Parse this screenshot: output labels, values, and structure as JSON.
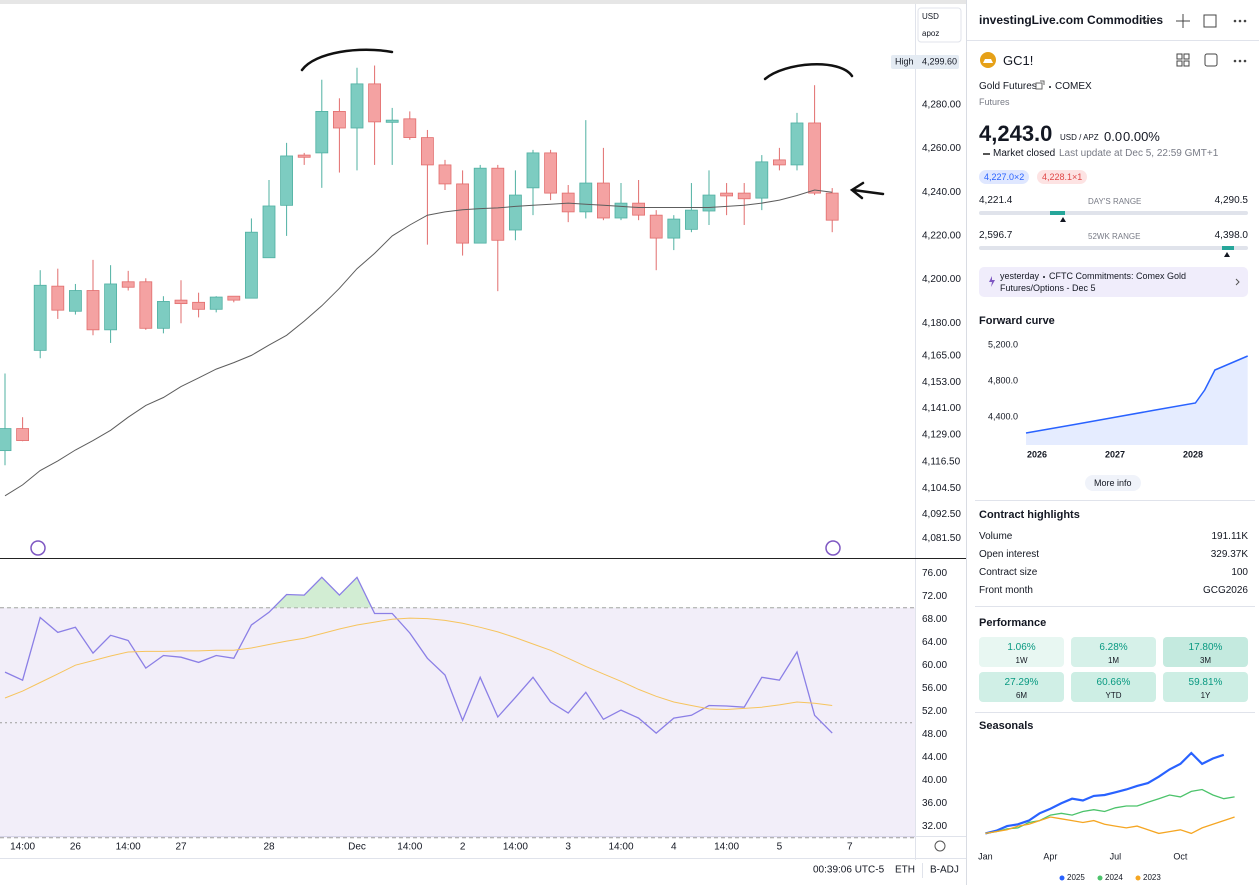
{
  "chart_controls": {
    "currency": "USD",
    "unit": "apoz"
  },
  "status_bar": {
    "time": "00:39:06 UTC-5",
    "session": "ETH",
    "adjustment": "B-ADJ"
  },
  "panel": {
    "watchlist": "investingLive.com Commodities",
    "symbol": {
      "ticker": "GC1!",
      "name": "Gold Futures",
      "exchange": "COMEX",
      "type": "Futures"
    },
    "quote": {
      "price": "4,243.0",
      "currency": "USD / APZ",
      "change": "0.0",
      "change_percent": "0.00%",
      "status": "Market closed",
      "last_update": "Last update at Dec 5, 22:59 GMT+1",
      "bid": "4,227.0×2",
      "ask": "4,228.1×1"
    },
    "day_range": {
      "low": "4,221.4",
      "label": "DAY'S RANGE",
      "high": "4,290.5"
    },
    "week52_range": {
      "low": "2,596.7",
      "label": "52WK RANGE",
      "high": "4,398.0"
    },
    "news": {
      "time": "yesterday",
      "text": "CFTC Commitments: Comex Gold Futures/Options - Dec 5"
    },
    "more_info": "More info",
    "contract_highlights": {
      "title": "Contract highlights",
      "rows": [
        [
          "Volume",
          "191.11K"
        ],
        [
          "Open interest",
          "329.37K"
        ],
        [
          "Contract size",
          "100"
        ],
        [
          "Front month",
          "GCG2026"
        ]
      ]
    },
    "performance": {
      "title": "Performance",
      "cells": [
        {
          "value": "1.06%",
          "period": "1W"
        },
        {
          "value": "6.28%",
          "period": "1M"
        },
        {
          "value": "17.80%",
          "period": "3M"
        },
        {
          "value": "27.29%",
          "period": "6M"
        },
        {
          "value": "60.66%",
          "period": "YTD"
        },
        {
          "value": "59.81%",
          "period": "1Y"
        }
      ]
    }
  },
  "chart_data": [
    {
      "type": "candlestick",
      "categories": [
        null,
        "14:00",
        null,
        null,
        "26",
        null,
        null,
        "14:00",
        null,
        null,
        "27",
        null,
        null,
        null,
        null,
        "28",
        null,
        null,
        null,
        null,
        "Dec",
        null,
        null,
        "14:00",
        null,
        null,
        "2",
        null,
        null,
        "14:00",
        null,
        null,
        "3",
        null,
        null,
        "14:00",
        null,
        null,
        "4",
        null,
        null,
        "14:00",
        null,
        null,
        "5",
        null,
        null,
        null,
        "7"
      ],
      "open": [
        4121.7,
        4131.8,
        4167.6,
        4197,
        4185.5,
        4195,
        4177,
        4199,
        4199,
        4177.7,
        4190.6,
        4189.6,
        4186.4,
        4192.4,
        4191.5,
        4210,
        4234,
        4257,
        4258,
        4277,
        4269.4,
        4289.6,
        4272,
        4273.6,
        4265,
        4252.5,
        4243.8,
        4216.7,
        4251,
        4222.7,
        4242,
        4258,
        4239.6,
        4231,
        4244.2,
        4228.2,
        4235,
        4229.5,
        4219,
        4223,
        4231.4,
        4239.6,
        4239.6,
        4237.3,
        4254.8,
        4252.5,
        4271.7,
        4239.6,
        null
      ],
      "high": [
        4157,
        4137,
        4204.3,
        4205,
        4198,
        4209,
        4206.6,
        4204,
        4200.6,
        4192.4,
        4199.7,
        4194,
        4192.4,
        4192.4,
        4228,
        4245.6,
        4262.6,
        4258,
        4291.5,
        4283,
        4297,
        4298,
        4278.6,
        4277,
        4268.5,
        4254.8,
        4250,
        4252.5,
        4252.5,
        4250,
        4259.4,
        4259.4,
        4243.3,
        4273,
        4260.3,
        4244.2,
        4245.6,
        4231.8,
        4229.5,
        4244.2,
        4250,
        4244.2,
        4244.2,
        4257,
        4260.3,
        4276.3,
        4289,
        4241.9,
        null
      ],
      "low": [
        4115,
        4126,
        4164,
        4182,
        4184,
        4174.5,
        4171,
        4195,
        4177,
        4175.4,
        4180,
        4182.7,
        4185,
        4189.6,
        4191.5,
        4210,
        4220,
        4252.5,
        4242,
        4249,
        4250,
        4252.5,
        4252.5,
        4264,
        4216,
        4241,
        4211,
        4216.7,
        4194.7,
        4218,
        4229.5,
        4236.4,
        4226.3,
        4228,
        4227.2,
        4227.2,
        4227.2,
        4204.3,
        4213.5,
        4221.7,
        4225,
        4229.5,
        4225,
        4231.8,
        4250,
        4250,
        4238.7,
        4221.7,
        null
      ],
      "close": [
        4131.8,
        4126.3,
        4197.4,
        4186,
        4195,
        4177,
        4198,
        4196.5,
        4177.7,
        4190,
        4189,
        4186.4,
        4192,
        4190.6,
        4221.7,
        4233.7,
        4256.6,
        4256,
        4277,
        4269.4,
        4289.6,
        4272.2,
        4273,
        4265,
        4252.5,
        4243.8,
        4216.7,
        4251,
        4218,
        4238.7,
        4258,
        4239.6,
        4231,
        4244.2,
        4228.2,
        4235,
        4229.5,
        4219,
        4227.7,
        4231.8,
        4238.7,
        4238.3,
        4237,
        4253.9,
        4252.5,
        4271.7,
        4239.6,
        4227.2,
        null
      ],
      "up_color": "#7dccc1",
      "up_border": "#4fb0a2",
      "down_color": "#f4a2a2",
      "down_border": "#e26d6d",
      "moving_average": {
        "color": "#5d5d5d",
        "values": [
          4101,
          4106,
          4112.6,
          4117,
          4122,
          4126.3,
          4131,
          4137,
          4142.4,
          4146,
          4151,
          4155,
          4159,
          4162,
          4165.3,
          4170,
          4174.5,
          4181,
          4188,
          4196,
          4205,
          4212,
          4220,
          4225,
          4229.5,
          4231,
          4232,
          4232.5,
          4232.8,
          4233.5,
          4234,
          4234.5,
          4235,
          4234.5,
          4234,
          4233.5,
          4233,
          4233,
          4233,
          4233,
          4233,
          4233.5,
          4234,
          4235,
          4236.4,
          4238.5,
          4241,
          4240,
          null
        ]
      },
      "high_marker": {
        "text": "High",
        "value": 4299.6,
        "label": "4,299.60"
      },
      "ylim": [
        4073,
        4328
      ],
      "yticks": [
        {
          "value": 4081.5,
          "label": "4,081.50"
        },
        {
          "value": 4092.5,
          "label": "4,092.50"
        },
        {
          "value": 4104.5,
          "label": "4,104.50"
        },
        {
          "value": 4116.5,
          "label": "4,116.50"
        },
        {
          "value": 4129,
          "label": "4,129.00"
        },
        {
          "value": 4141,
          "label": "4,141.00"
        },
        {
          "value": 4153,
          "label": "4,153.00"
        },
        {
          "value": 4165,
          "label": "4,165.00"
        },
        {
          "value": 4180,
          "label": "4,180.00"
        },
        {
          "value": 4200,
          "label": "4,200.00"
        },
        {
          "value": 4220,
          "label": "4,220.00"
        },
        {
          "value": 4240,
          "label": "4,240.00"
        },
        {
          "value": 4260,
          "label": "4,260.00"
        },
        {
          "value": 4280,
          "label": "4,280.00"
        }
      ],
      "grid": false
    },
    {
      "type": "line",
      "series": [
        {
          "color": "#8b7fe6",
          "values": [
            58.8,
            57.4,
            68.3,
            65.7,
            66.6,
            62.1,
            65.2,
            64.3,
            59.5,
            61.7,
            61.4,
            60.5,
            61.7,
            61.2,
            67,
            69.2,
            72.3,
            72.2,
            75.3,
            72.2,
            75.3,
            69,
            69,
            65.6,
            61.2,
            58.3,
            50.4,
            57.9,
            51,
            54.4,
            57.9,
            53.6,
            51.7,
            55.3,
            50.6,
            52.2,
            50.8,
            48.2,
            50.8,
            51.3,
            53,
            52.9,
            52.7,
            57.9,
            57.4,
            62.3,
            51.3,
            48.2,
            null
          ]
        },
        {
          "color": "#f6c45e",
          "values": [
            54.3,
            55.5,
            57,
            58.5,
            60,
            60.8,
            61.6,
            62.3,
            62.4,
            62.4,
            62.5,
            62.5,
            62.6,
            62.6,
            63,
            63.6,
            64.2,
            64.7,
            65.5,
            66.3,
            67,
            67.5,
            68,
            68.2,
            68.1,
            67.8,
            67.3,
            66.6,
            65.8,
            64.8,
            63.7,
            62.6,
            61.2,
            59.8,
            58.5,
            57.2,
            55.8,
            54.6,
            53.6,
            53,
            52.4,
            52.3,
            52.5,
            52.7,
            53.1,
            53.6,
            53.4,
            53,
            null
          ]
        }
      ],
      "band": [
        30,
        70
      ],
      "midline": 50,
      "band_color": "#7e57c2",
      "overbought_color": "#bfe6c0",
      "ylim": [
        30.3,
        78.3
      ],
      "yticks": [
        {
          "value": 32,
          "label": "32.00"
        },
        {
          "value": 36,
          "label": "36.00"
        },
        {
          "value": 40,
          "label": "40.00"
        },
        {
          "value": 44,
          "label": "44.00"
        },
        {
          "value": 48,
          "label": "48.00"
        },
        {
          "value": 52,
          "label": "52.00"
        },
        {
          "value": 56,
          "label": "56.00"
        },
        {
          "value": 60,
          "label": "60.00"
        },
        {
          "value": 64,
          "label": "64.00"
        },
        {
          "value": 68,
          "label": "68.00"
        },
        {
          "value": 72,
          "label": "72.00"
        },
        {
          "value": 76,
          "label": "76.00"
        }
      ],
      "grid": false
    },
    {
      "type": "area",
      "title": "Forward curve",
      "x": [
        2025.86,
        2026.5,
        2027,
        2027.5,
        2028.03,
        2028.15,
        2028.28,
        2028.7
      ],
      "values": [
        4222,
        4320,
        4398,
        4475,
        4556,
        4700,
        4922,
        5078
      ],
      "color": "#2962ff",
      "xlim": [
        2025.27,
        2028.73
      ],
      "ylim": [
        4089,
        5278
      ],
      "xticks": [
        2026,
        2027,
        2028
      ],
      "yticks": [
        {
          "value": 4400,
          "label": "4,400.0"
        },
        {
          "value": 4800,
          "label": "4,800.0"
        },
        {
          "value": 5200,
          "label": "5,200.0"
        }
      ]
    },
    {
      "type": "line",
      "title": "Seasonals",
      "categories": [
        "Jan",
        null,
        null,
        null,
        null,
        null,
        "Apr",
        null,
        null,
        null,
        null,
        null,
        "Jul",
        null,
        null,
        null,
        null,
        null,
        "Oct",
        null,
        null,
        null,
        null,
        null
      ],
      "series": [
        {
          "name": "2025",
          "color": "#2962ff",
          "values": [
            0,
            3,
            8,
            10,
            14,
            22,
            27,
            33,
            38,
            36,
            41,
            42,
            45,
            48,
            52,
            55,
            62,
            70,
            76,
            88,
            76,
            82,
            86,
            null
          ]
        },
        {
          "name": "2024",
          "color": "#4cc36b",
          "values": [
            0,
            2,
            5,
            6,
            12,
            14,
            20,
            22,
            20,
            24,
            26,
            24,
            28,
            30,
            30,
            34,
            38,
            42,
            40,
            46,
            48,
            42,
            38,
            40
          ]
        },
        {
          "name": "2023",
          "color": "#f5a623",
          "values": [
            0,
            2,
            4,
            8,
            10,
            14,
            18,
            16,
            14,
            12,
            14,
            10,
            8,
            6,
            8,
            4,
            0,
            2,
            4,
            0,
            6,
            10,
            14,
            18
          ]
        }
      ],
      "ylim": [
        -5,
        100
      ]
    }
  ]
}
